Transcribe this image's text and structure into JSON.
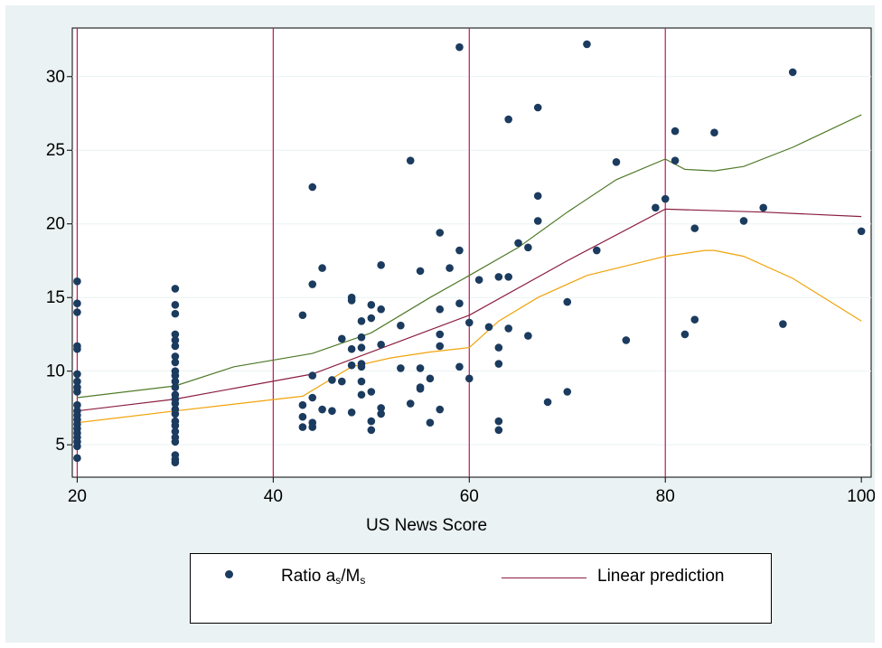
{
  "chart_data": {
    "type": "scatter",
    "xlabel": "US News Score",
    "ylabel": "",
    "xlim": [
      19.5,
      101
    ],
    "ylim": [
      2.8,
      33.3
    ],
    "xticks": [
      20,
      40,
      60,
      80,
      100
    ],
    "yticks": [
      5,
      10,
      15,
      20,
      25,
      30
    ],
    "grid": "horizontal",
    "vlines": [
      20,
      40,
      60,
      80
    ],
    "colors": {
      "scatter": "#1b3b5f",
      "prediction": "#8b1e3f",
      "upper_band": "#4f7a28",
      "lower_band": "#f0a30a",
      "vline": "#c2185b",
      "grid": "#eaf2f3",
      "background": "#eaf2f3"
    },
    "legend": {
      "position": "bottom",
      "scatter_label": "Ratio a",
      "scatter_sub1": "s",
      "scatter_mid": "/M",
      "scatter_sub2": "s",
      "line_label": "Linear prediction"
    },
    "scatter": [
      [
        20,
        16.1
      ],
      [
        20,
        14.6
      ],
      [
        20,
        14.0
      ],
      [
        20,
        11.7
      ],
      [
        20,
        11.5
      ],
      [
        20,
        9.8
      ],
      [
        20,
        9.3
      ],
      [
        20,
        8.9
      ],
      [
        20,
        8.6
      ],
      [
        20,
        7.7
      ],
      [
        20,
        7.3
      ],
      [
        20,
        7.0
      ],
      [
        20,
        6.7
      ],
      [
        20,
        6.4
      ],
      [
        20,
        6.1
      ],
      [
        20,
        5.8
      ],
      [
        20,
        5.5
      ],
      [
        20,
        5.2
      ],
      [
        20,
        4.9
      ],
      [
        20,
        4.1
      ],
      [
        30,
        15.6
      ],
      [
        30,
        14.5
      ],
      [
        30,
        13.9
      ],
      [
        30,
        12.5
      ],
      [
        30,
        12.1
      ],
      [
        30,
        11.7
      ],
      [
        30,
        11.0
      ],
      [
        30,
        10.6
      ],
      [
        30,
        10.0
      ],
      [
        30,
        9.7
      ],
      [
        30,
        9.3
      ],
      [
        30,
        8.9
      ],
      [
        30,
        8.4
      ],
      [
        30,
        8.1
      ],
      [
        30,
        7.8
      ],
      [
        30,
        7.4
      ],
      [
        30,
        7.1
      ],
      [
        30,
        6.6
      ],
      [
        30,
        6.3
      ],
      [
        30,
        5.9
      ],
      [
        30,
        5.5
      ],
      [
        30,
        5.2
      ],
      [
        30,
        4.3
      ],
      [
        30,
        4.0
      ],
      [
        30,
        3.8
      ],
      [
        43,
        13.8
      ],
      [
        43,
        7.7
      ],
      [
        43,
        6.9
      ],
      [
        43,
        6.2
      ],
      [
        44,
        22.5
      ],
      [
        44,
        15.9
      ],
      [
        44,
        9.7
      ],
      [
        44,
        8.2
      ],
      [
        44,
        6.5
      ],
      [
        44,
        6.2
      ],
      [
        45,
        17.0
      ],
      [
        45,
        7.4
      ],
      [
        46,
        9.4
      ],
      [
        46,
        7.3
      ],
      [
        47,
        12.2
      ],
      [
        47,
        9.3
      ],
      [
        48,
        15.0
      ],
      [
        48,
        14.8
      ],
      [
        48,
        11.5
      ],
      [
        48,
        10.4
      ],
      [
        48,
        7.2
      ],
      [
        49,
        13.4
      ],
      [
        49,
        12.3
      ],
      [
        49,
        11.6
      ],
      [
        49,
        10.5
      ],
      [
        49,
        10.3
      ],
      [
        49,
        9.3
      ],
      [
        49,
        8.4
      ],
      [
        50,
        14.5
      ],
      [
        50,
        13.6
      ],
      [
        50,
        8.6
      ],
      [
        50,
        6.6
      ],
      [
        50,
        6.0
      ],
      [
        51,
        17.2
      ],
      [
        51,
        14.2
      ],
      [
        51,
        11.8
      ],
      [
        51,
        7.5
      ],
      [
        51,
        7.1
      ],
      [
        53,
        13.1
      ],
      [
        53,
        10.2
      ],
      [
        54,
        24.3
      ],
      [
        54,
        7.8
      ],
      [
        55,
        16.8
      ],
      [
        55,
        10.2
      ],
      [
        55,
        8.9
      ],
      [
        55,
        8.8
      ],
      [
        56,
        9.5
      ],
      [
        56,
        6.5
      ],
      [
        57,
        19.4
      ],
      [
        57,
        14.2
      ],
      [
        57,
        12.5
      ],
      [
        57,
        11.7
      ],
      [
        57,
        7.4
      ],
      [
        58,
        17.0
      ],
      [
        59,
        32.0
      ],
      [
        59,
        18.2
      ],
      [
        59,
        14.6
      ],
      [
        59,
        10.3
      ],
      [
        60,
        13.3
      ],
      [
        60,
        9.5
      ],
      [
        61,
        16.2
      ],
      [
        62,
        13.0
      ],
      [
        63,
        16.4
      ],
      [
        63,
        11.6
      ],
      [
        63,
        10.5
      ],
      [
        63,
        6.6
      ],
      [
        63,
        6.0
      ],
      [
        64,
        27.1
      ],
      [
        64,
        16.4
      ],
      [
        64,
        12.9
      ],
      [
        65,
        18.7
      ],
      [
        66,
        18.4
      ],
      [
        66,
        12.4
      ],
      [
        67,
        27.9
      ],
      [
        67,
        21.9
      ],
      [
        67,
        20.2
      ],
      [
        68,
        7.9
      ],
      [
        70,
        14.7
      ],
      [
        70,
        8.6
      ],
      [
        72,
        32.2
      ],
      [
        73,
        18.2
      ],
      [
        75,
        24.2
      ],
      [
        76,
        12.1
      ],
      [
        79,
        21.1
      ],
      [
        80,
        21.7
      ],
      [
        81,
        26.3
      ],
      [
        81,
        24.3
      ],
      [
        82,
        12.5
      ],
      [
        83,
        19.7
      ],
      [
        83,
        13.5
      ],
      [
        85,
        26.2
      ],
      [
        88,
        20.2
      ],
      [
        90,
        21.1
      ],
      [
        92,
        13.2
      ],
      [
        93,
        30.3
      ],
      [
        100,
        19.5
      ]
    ],
    "prediction": [
      [
        20,
        7.3
      ],
      [
        30,
        8.1
      ],
      [
        44,
        9.8
      ],
      [
        60,
        13.8
      ],
      [
        70,
        17.5
      ],
      [
        80,
        21.0
      ],
      [
        90,
        20.8
      ],
      [
        100,
        20.5
      ]
    ],
    "upper_band": [
      [
        20,
        8.2
      ],
      [
        30,
        9.0
      ],
      [
        36,
        10.3
      ],
      [
        44,
        11.2
      ],
      [
        50,
        12.6
      ],
      [
        56,
        15.0
      ],
      [
        60,
        16.5
      ],
      [
        65,
        18.4
      ],
      [
        70,
        20.8
      ],
      [
        75,
        23.0
      ],
      [
        80,
        24.4
      ],
      [
        82,
        23.7
      ],
      [
        85,
        23.6
      ],
      [
        88,
        23.9
      ],
      [
        93,
        25.2
      ],
      [
        100,
        27.4
      ]
    ],
    "lower_band": [
      [
        20,
        6.5
      ],
      [
        30,
        7.3
      ],
      [
        43,
        8.3
      ],
      [
        48,
        10.3
      ],
      [
        52,
        10.9
      ],
      [
        56,
        11.3
      ],
      [
        60,
        11.6
      ],
      [
        63,
        13.4
      ],
      [
        67,
        15.0
      ],
      [
        72,
        16.5
      ],
      [
        80,
        17.8
      ],
      [
        84,
        18.2
      ],
      [
        85,
        18.2
      ],
      [
        88,
        17.8
      ],
      [
        93,
        16.3
      ],
      [
        100,
        13.4
      ]
    ]
  }
}
